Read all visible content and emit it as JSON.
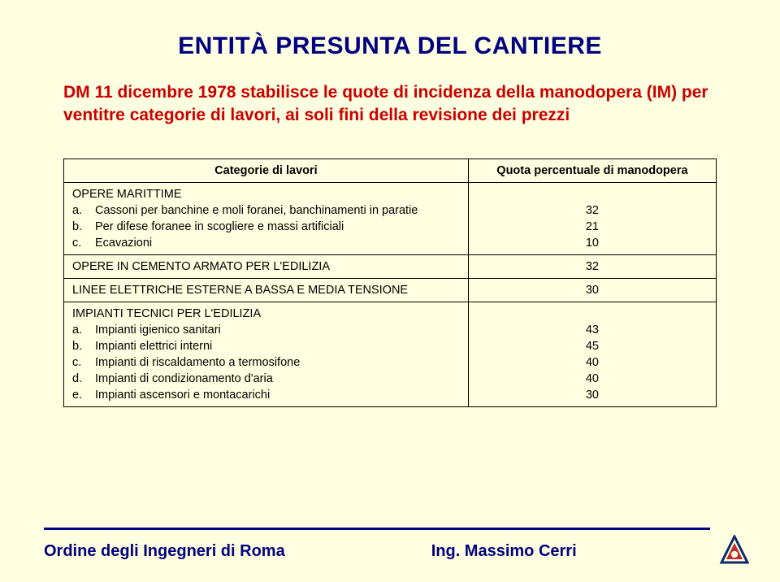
{
  "colors": {
    "background": "#ffffe1",
    "title": "#000080",
    "intro": "#cc0000",
    "table_border": "#000000",
    "footer_rule": "#000080",
    "logo_outer": "#0a2a6b",
    "logo_inner": "#c0282d"
  },
  "title": "ENTITÀ PRESUNTA DEL CANTIERE",
  "intro": "DM 11 dicembre 1978 stabilisce le quote di incidenza della manodopera (IM) per ventitre categorie di lavori, ai soli fini della revisione dei prezzi",
  "table": {
    "header_left": "Categorie di lavori",
    "header_right": "Quota percentuale di manodopera",
    "rows": [
      {
        "kind": "section-with-subs",
        "section": "OPERE MARITTIME",
        "subs": [
          {
            "letter": "a.",
            "text": "Cassoni per banchine e moli foranei, banchinamenti in paratie",
            "value": "32"
          },
          {
            "letter": "b.",
            "text": "Per difese foranee in scogliere e massi artificiali",
            "value": "21"
          },
          {
            "letter": "c.",
            "text": "Ecavazioni",
            "value": "10"
          }
        ]
      },
      {
        "kind": "simple",
        "label": "OPERE IN CEMENTO ARMATO PER L'EDILIZIA",
        "value": "32"
      },
      {
        "kind": "simple",
        "label": "LINEE ELETTRICHE ESTERNE A BASSA E MEDIA TENSIONE",
        "value": "30"
      },
      {
        "kind": "section-with-subs",
        "section": "IMPIANTI TECNICI PER L'EDILIZIA",
        "subs": [
          {
            "letter": "a.",
            "text": "Impianti igienico sanitari",
            "value": "43"
          },
          {
            "letter": "b.",
            "text": "Impianti elettrici interni",
            "value": "45"
          },
          {
            "letter": "c.",
            "text": "Impianti di riscaldamento a termosifone",
            "value": "40"
          },
          {
            "letter": "d.",
            "text": "Impianti di condizionamento d'aria",
            "value": "40"
          },
          {
            "letter": "e.",
            "text": "Impianti ascensori e montacarichi",
            "value": "30"
          }
        ]
      }
    ]
  },
  "footer": {
    "left": "Ordine degli Ingegneri di Roma",
    "right": "Ing. Massimo Cerri"
  }
}
